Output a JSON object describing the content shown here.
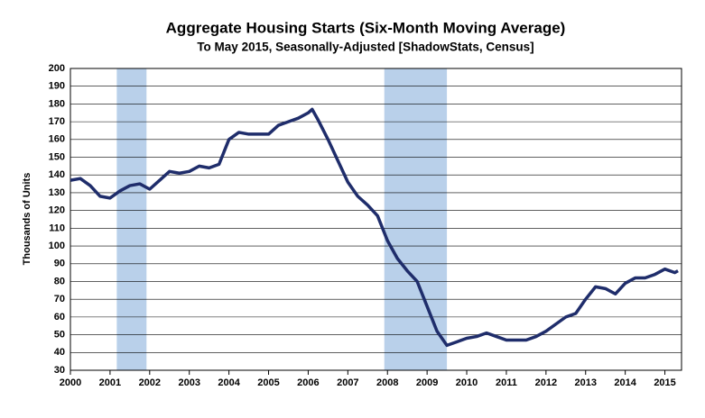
{
  "chart_data": {
    "type": "line",
    "title": "Aggregate Housing Starts (Six-Month Moving Average)",
    "subtitle": "To May 2015, Seasonally-Adjusted [ShadowStats, Census]",
    "y_label": "Thousands of Units",
    "x": [
      2000.0,
      2000.25,
      2000.5,
      2000.75,
      2001.0,
      2001.25,
      2001.5,
      2001.75,
      2002.0,
      2002.25,
      2002.5,
      2002.75,
      2003.0,
      2003.25,
      2003.5,
      2003.75,
      2004.0,
      2004.25,
      2004.5,
      2004.75,
      2005.0,
      2005.25,
      2005.5,
      2005.75,
      2006.0,
      2006.1,
      2006.25,
      2006.5,
      2006.75,
      2007.0,
      2007.25,
      2007.5,
      2007.75,
      2008.0,
      2008.25,
      2008.5,
      2008.75,
      2009.0,
      2009.25,
      2009.5,
      2009.75,
      2010.0,
      2010.25,
      2010.5,
      2010.75,
      2011.0,
      2011.25,
      2011.5,
      2011.75,
      2012.0,
      2012.25,
      2012.5,
      2012.75,
      2013.0,
      2013.25,
      2013.5,
      2013.75,
      2014.0,
      2014.25,
      2014.5,
      2014.75,
      2015.0,
      2015.25,
      2015.33
    ],
    "series": [
      {
        "name": "Housing Starts",
        "color": "#1f2d6b",
        "values": [
          137,
          138,
          134,
          128,
          127,
          131,
          134,
          135,
          132,
          137,
          142,
          141,
          142,
          145,
          144,
          146,
          160,
          164,
          163,
          163,
          163,
          168,
          170,
          172,
          175,
          177,
          171,
          160,
          148,
          136,
          128,
          123,
          117,
          103,
          93,
          86,
          80,
          66,
          52,
          44,
          46,
          48,
          49,
          51,
          49,
          47,
          47,
          47,
          49,
          52,
          56,
          60,
          62,
          70,
          77,
          76,
          73,
          79,
          82,
          82,
          84,
          87,
          85,
          86
        ]
      }
    ],
    "shaded_regions": [
      [
        2001.17,
        2001.92
      ],
      [
        2007.92,
        2009.5
      ]
    ],
    "shade_color": "#b9d0ea",
    "xlim": [
      2000,
      2015.42
    ],
    "xticks": [
      2000,
      2001,
      2002,
      2003,
      2004,
      2005,
      2006,
      2007,
      2008,
      2009,
      2010,
      2011,
      2012,
      2013,
      2014,
      2015
    ],
    "ylim": [
      30,
      200
    ],
    "yticks": [
      30,
      40,
      50,
      60,
      70,
      80,
      90,
      100,
      110,
      120,
      130,
      140,
      150,
      160,
      170,
      180,
      190,
      200
    ],
    "grid": true
  }
}
